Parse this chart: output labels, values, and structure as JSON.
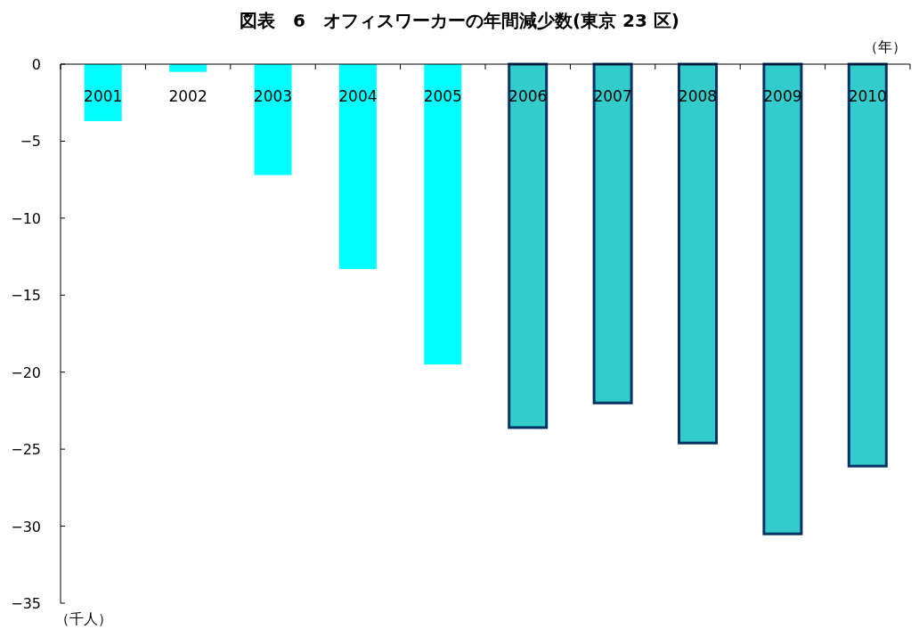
{
  "chart_data": {
    "type": "bar",
    "title": "図表　6　オフィスワーカーの年間減少数(東京 23 区)",
    "xlabel": "（年）",
    "annotations": [
      "（千人）"
    ],
    "categories": [
      "2001",
      "2002",
      "2003",
      "2004",
      "2005",
      "2006",
      "2007",
      "2008",
      "2009",
      "2010"
    ],
    "series": [
      {
        "color": "#00ffff",
        "values": [
          -3.7,
          -0.5,
          -7.2,
          -13.3,
          -19.5,
          null,
          null,
          null,
          null,
          null
        ]
      },
      {
        "color": "#33cccc",
        "values": [
          null,
          null,
          null,
          null,
          null,
          -23.6,
          -22.0,
          -24.6,
          -30.5,
          -26.1
        ]
      }
    ],
    "ylim": [
      -35,
      0
    ],
    "yticks": [
      0,
      {
        "value": -5,
        "label": "−5"
      },
      {
        "value": -10,
        "label": "−10"
      },
      {
        "value": -15,
        "label": "−15"
      },
      {
        "value": -20,
        "label": "−20"
      },
      {
        "value": -25,
        "label": "−25"
      },
      {
        "value": -30,
        "label": "−30"
      },
      {
        "value": -35,
        "label": "−35"
      }
    ],
    "grid": false
  }
}
